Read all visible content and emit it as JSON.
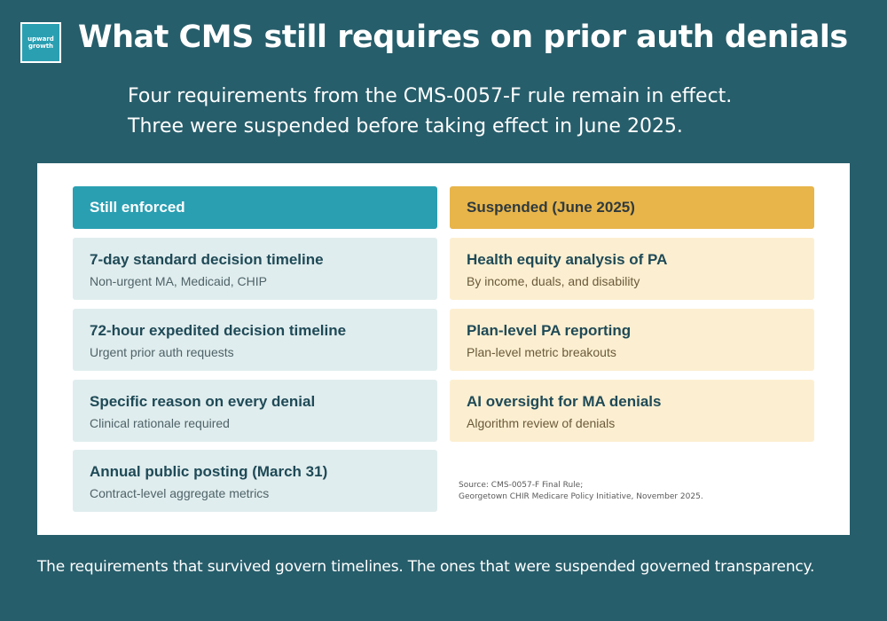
{
  "logo": {
    "line1": "upward",
    "line2": "growth"
  },
  "title": "What CMS still requires on prior auth denials",
  "subtitle": {
    "line1": "Four requirements from the CMS-0057-F rule remain in effect.",
    "line2": "Three were suspended before taking effect in June 2025."
  },
  "columns": {
    "enforced": {
      "header": "Still enforced",
      "items": [
        {
          "title": "7-day standard decision timeline",
          "sub": "Non-urgent MA, Medicaid, CHIP"
        },
        {
          "title": "72-hour expedited decision timeline",
          "sub": "Urgent prior auth requests"
        },
        {
          "title": "Specific reason on every denial",
          "sub": "Clinical rationale required"
        },
        {
          "title": "Annual public posting (March 31)",
          "sub": "Contract-level aggregate metrics"
        }
      ]
    },
    "suspended": {
      "header": "Suspended (June 2025)",
      "items": [
        {
          "title": "Health equity analysis of PA",
          "sub": "By income, duals, and disability"
        },
        {
          "title": "Plan-level PA reporting",
          "sub": "Plan-level metric breakouts"
        },
        {
          "title": "AI oversight for MA denials",
          "sub": "Algorithm review of denials"
        }
      ]
    }
  },
  "source": {
    "line1": "Source: CMS-0057-F Final Rule;",
    "line2": "Georgetown CHIR Medicare Policy Initiative, November 2025."
  },
  "footer": "The requirements that survived govern timelines. The ones that were suspended governed transparency.",
  "colors": {
    "background": "#275e6b",
    "enforced_header": "#2a9fb2",
    "enforced_card": "#e0edee",
    "suspended_header": "#e8b54b",
    "suspended_card": "#fcefd1"
  }
}
